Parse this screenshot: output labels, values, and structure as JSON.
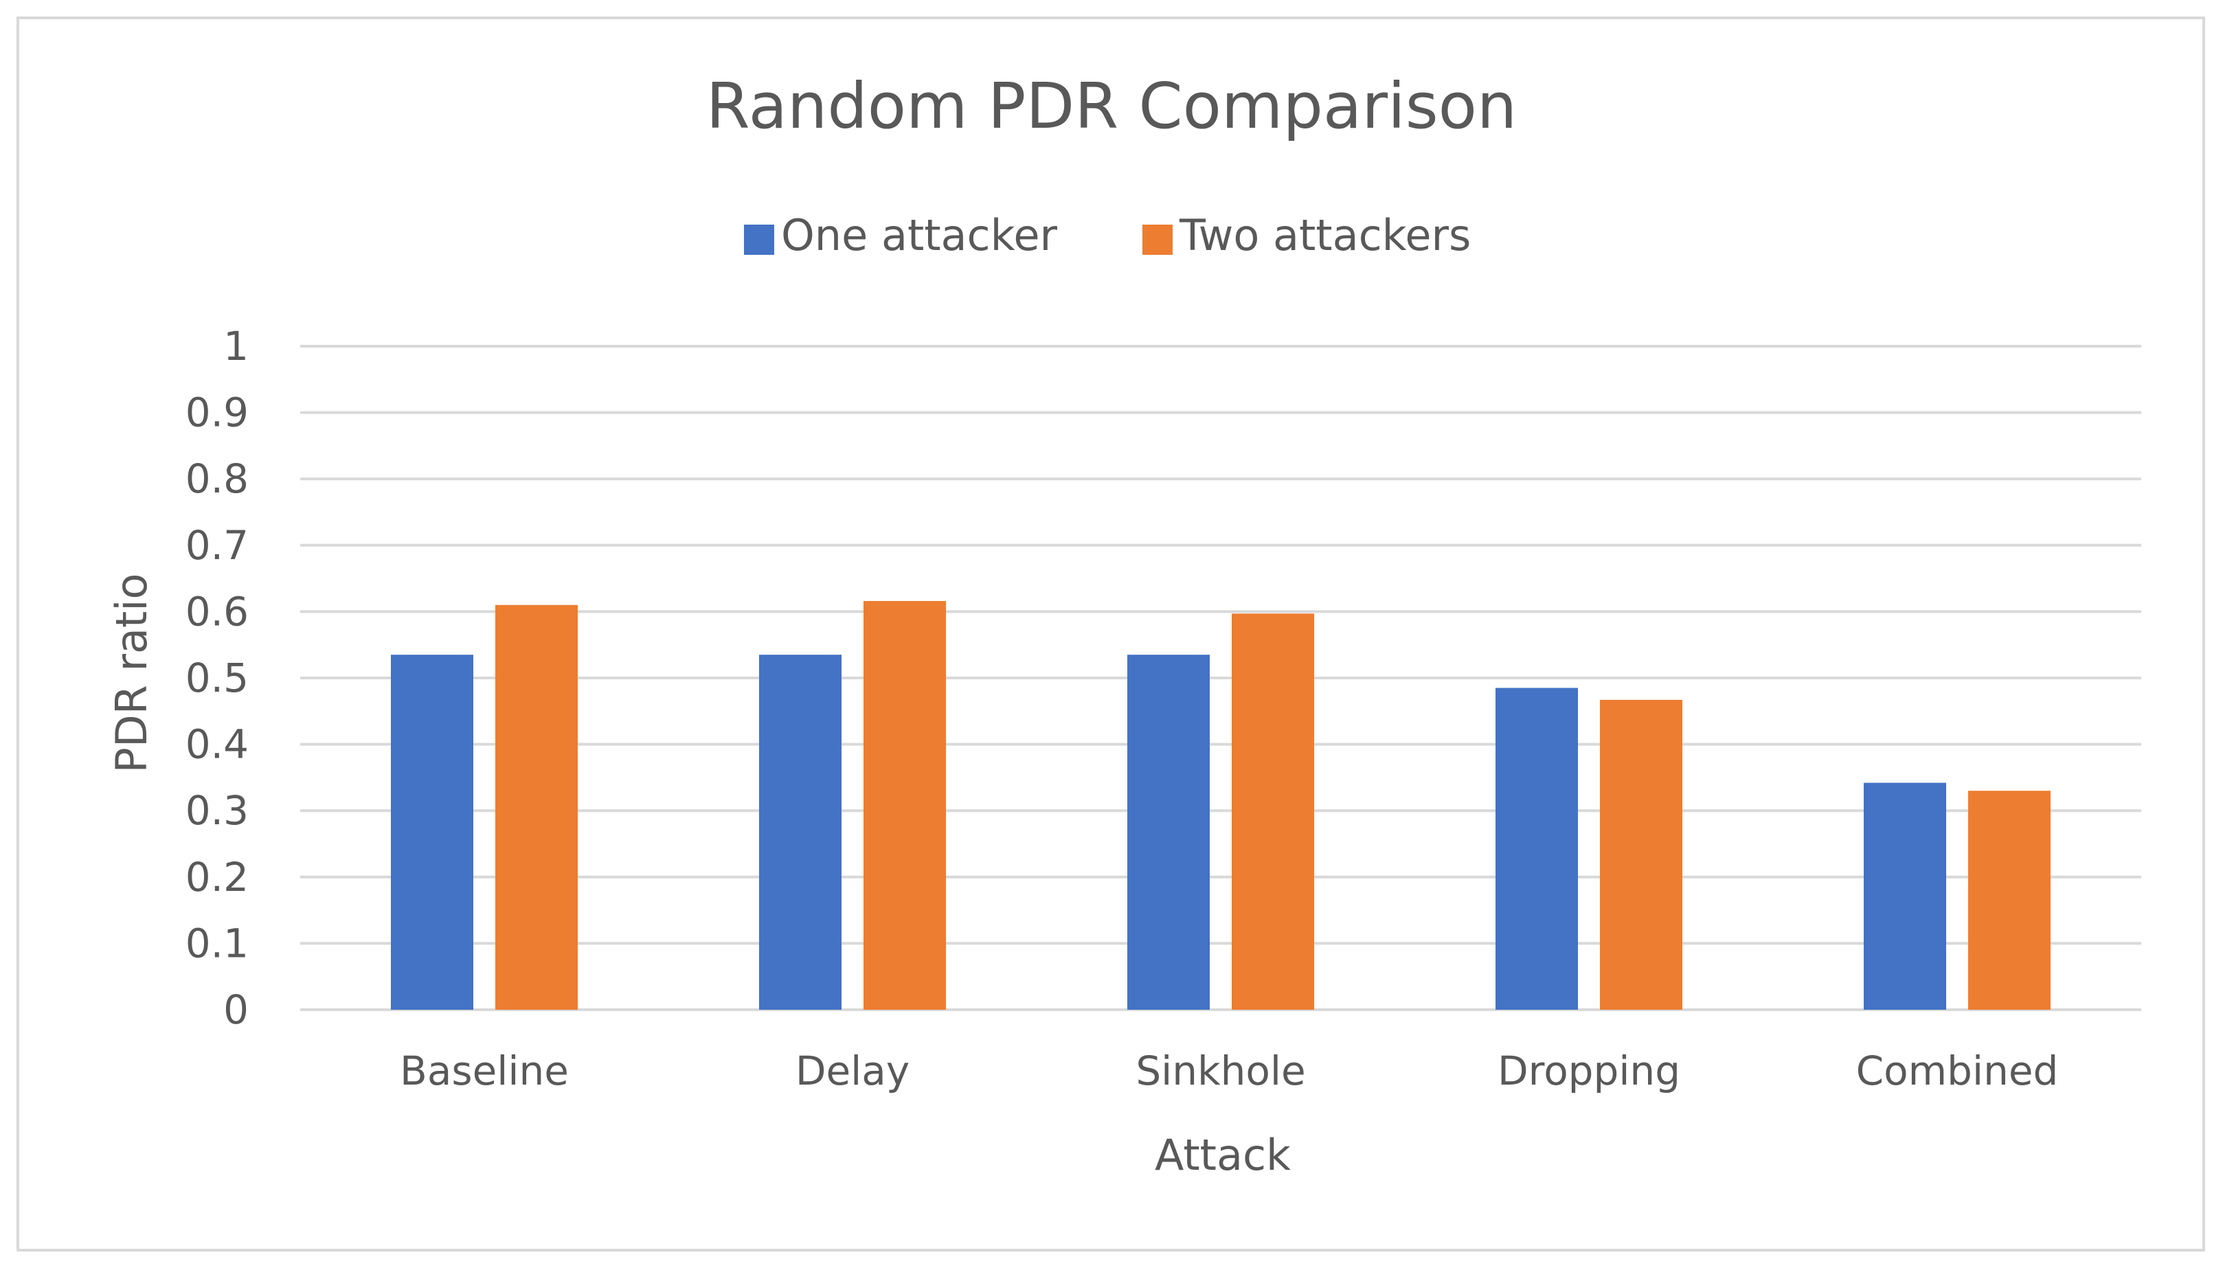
{
  "chart_data": {
    "type": "bar",
    "title": "Random PDR Comparison",
    "xlabel": "Attack",
    "ylabel": "PDR ratio",
    "categories": [
      "Baseline",
      "Delay",
      "Sinkhole",
      "Dropping",
      "Combined"
    ],
    "series": [
      {
        "name": "One attacker",
        "color": "#4472C4",
        "values": [
          0.535,
          0.535,
          0.535,
          0.485,
          0.342
        ]
      },
      {
        "name": "Two attackers",
        "color": "#ED7D31",
        "values": [
          0.61,
          0.616,
          0.597,
          0.467,
          0.33
        ]
      }
    ],
    "ylim": [
      0,
      1
    ],
    "yticks": [
      "0",
      "0.1",
      "0.2",
      "0.3",
      "0.4",
      "0.5",
      "0.6",
      "0.7",
      "0.8",
      "0.9",
      "1"
    ],
    "grid": true,
    "gridColor": "#d9d9d9",
    "legend_position": "top"
  }
}
